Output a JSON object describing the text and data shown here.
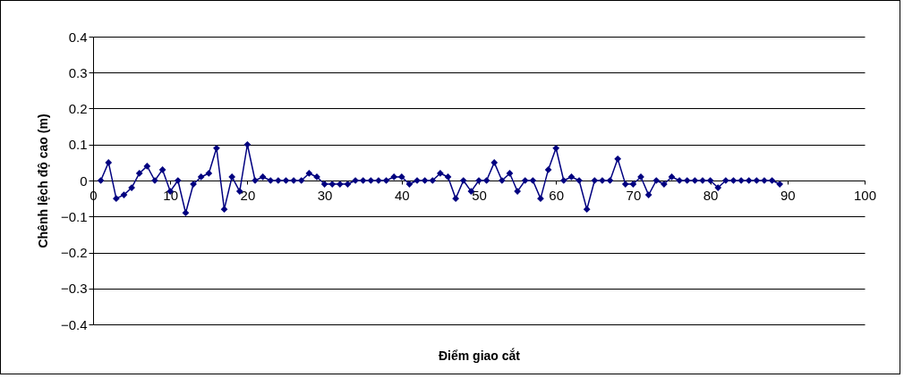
{
  "chart_data": {
    "type": "line",
    "xlabel": "Điểm giao cắt",
    "ylabel": "Chênh lệch độ cao (m)",
    "x": [
      1,
      2,
      3,
      4,
      5,
      6,
      7,
      8,
      9,
      10,
      11,
      12,
      13,
      14,
      15,
      16,
      17,
      18,
      19,
      20,
      21,
      22,
      23,
      24,
      25,
      26,
      27,
      28,
      29,
      30,
      31,
      32,
      33,
      34,
      35,
      36,
      37,
      38,
      39,
      40,
      41,
      42,
      43,
      44,
      45,
      46,
      47,
      48,
      49,
      50,
      51,
      52,
      53,
      54,
      55,
      56,
      57,
      58,
      59,
      60,
      61,
      62,
      63,
      64,
      65,
      66,
      67,
      68,
      69,
      70,
      71,
      72,
      73,
      74,
      75,
      76,
      77,
      78,
      79,
      80,
      81,
      82,
      83,
      84,
      85,
      86,
      87,
      88,
      89
    ],
    "series": [
      {
        "color": "#000080",
        "values": [
          0,
          0.05,
          -0.05,
          -0.04,
          -0.02,
          0.02,
          0.04,
          0,
          0.03,
          -0.03,
          0,
          -0.09,
          -0.01,
          0.01,
          0.02,
          0.09,
          -0.08,
          0.01,
          -0.03,
          0.1,
          0,
          0.01,
          0,
          0,
          0,
          0,
          0,
          0.02,
          0.01,
          -0.01,
          -0.01,
          -0.01,
          -0.01,
          0,
          0,
          0,
          0,
          0,
          0.01,
          0.01,
          -0.01,
          0,
          0,
          0,
          0.02,
          0.01,
          -0.05,
          0,
          -0.03,
          0,
          0,
          0.05,
          0,
          0.02,
          -0.03,
          0,
          0,
          -0.05,
          0.03,
          0.09,
          0,
          0.01,
          0,
          -0.08,
          0,
          0,
          0,
          0.06,
          -0.01,
          -0.01,
          0.01,
          -0.04,
          0,
          -0.01,
          0.01,
          0,
          0,
          0,
          0,
          0,
          -0.02,
          0,
          0,
          0,
          0,
          0,
          0,
          0,
          -0.01
        ]
      }
    ],
    "xlim": [
      0,
      100
    ],
    "xticks": [
      0,
      10,
      20,
      30,
      40,
      50,
      60,
      70,
      80,
      90,
      100
    ],
    "ylim": [
      -0.4,
      0.4
    ],
    "yticks": [
      -0.4,
      -0.3,
      -0.2,
      -0.1,
      0,
      0.1,
      0.2,
      0.3,
      0.4
    ],
    "grid": "y",
    "marker": "diamond",
    "line_style": "solid",
    "legend": false
  }
}
